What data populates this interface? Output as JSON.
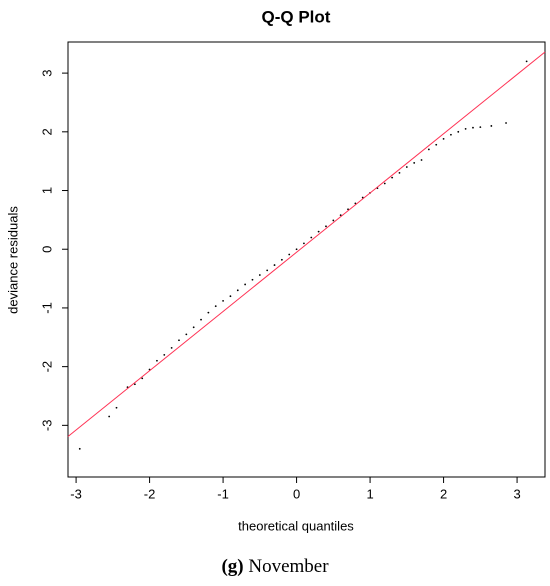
{
  "chart_data": {
    "type": "scatter",
    "title": "Q-Q Plot",
    "x_label": "theoretical quantiles",
    "y_label": "deviance residuals",
    "caption_label": "(g)",
    "caption": "November",
    "xlim": [
      -3.11,
      3.38
    ],
    "ylim": [
      -3.88,
      3.53
    ],
    "xticks": [
      -3,
      -2,
      -1,
      0,
      1,
      2,
      3
    ],
    "yticks": [
      -3,
      -2,
      -1,
      0,
      1,
      2,
      3
    ],
    "grid": false,
    "series": [
      {
        "color": "#000000",
        "x": [
          -2.95,
          -2.55,
          -2.45,
          -2.3,
          -2.2,
          -2.1,
          -2.0,
          -1.9,
          -1.8,
          -1.7,
          -1.6,
          -1.5,
          -1.4,
          -1.3,
          -1.2,
          -1.1,
          -1.0,
          -0.9,
          -0.8,
          -0.7,
          -0.6,
          -0.5,
          -0.4,
          -0.3,
          -0.2,
          -0.1,
          0,
          0.1,
          0.2,
          0.3,
          0.4,
          0.5,
          0.6,
          0.7,
          0.8,
          0.9,
          1.0,
          1.1,
          1.2,
          1.3,
          1.4,
          1.5,
          1.6,
          1.7,
          1.8,
          1.9,
          2.0,
          2.1,
          2.2,
          2.3,
          2.4,
          2.5,
          2.65,
          2.85,
          3.13
        ],
        "values": [
          -3.4,
          -2.85,
          -2.7,
          -2.35,
          -2.3,
          -2.2,
          -2.05,
          -1.9,
          -1.8,
          -1.68,
          -1.55,
          -1.45,
          -1.33,
          -1.2,
          -1.08,
          -0.97,
          -0.88,
          -0.8,
          -0.7,
          -0.6,
          -0.52,
          -0.44,
          -0.36,
          -0.27,
          -0.18,
          -0.09,
          0,
          0.1,
          0.2,
          0.3,
          0.39,
          0.49,
          0.58,
          0.68,
          0.78,
          0.88,
          0.96,
          1.04,
          1.12,
          1.22,
          1.3,
          1.4,
          1.47,
          1.52,
          1.7,
          1.78,
          1.88,
          1.95,
          2.0,
          2.05,
          2.07,
          2.08,
          2.1,
          2.15,
          3.2
        ]
      }
    ],
    "reference_line": {
      "color": "#ff3355",
      "x": [
        -3.11,
        3.38
      ],
      "values": [
        -3.19,
        3.36
      ]
    }
  }
}
